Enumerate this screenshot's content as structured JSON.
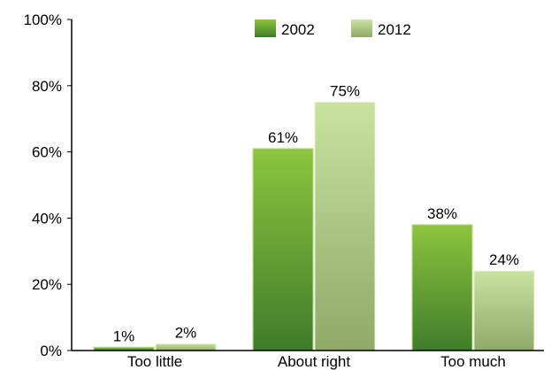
{
  "chart_data": {
    "type": "bar",
    "categories": [
      "Too little",
      "About right",
      "Too much"
    ],
    "series": [
      {
        "name": "2002",
        "values": [
          1,
          61,
          38
        ],
        "data_labels": [
          "1%",
          "61%",
          "38%"
        ]
      },
      {
        "name": "2012",
        "values": [
          2,
          75,
          24
        ],
        "data_labels": [
          "2%",
          "75%",
          "24%"
        ]
      }
    ],
    "ylim": [
      0,
      100
    ],
    "yticks": [
      0,
      20,
      40,
      60,
      80,
      100
    ],
    "ytick_labels": [
      "0%",
      "20%",
      "40%",
      "60%",
      "80%",
      "100%"
    ],
    "title": "",
    "xlabel": "",
    "ylabel": "",
    "grid": false,
    "legend_position": "top-center",
    "colors": {
      "2002": {
        "top": "#8dc53e",
        "bottom": "#3f7c2a",
        "light": "#b9de7a"
      },
      "2012": {
        "top": "#c8e2a0",
        "bottom": "#8faa68",
        "light": "#e3f1cc"
      }
    }
  }
}
